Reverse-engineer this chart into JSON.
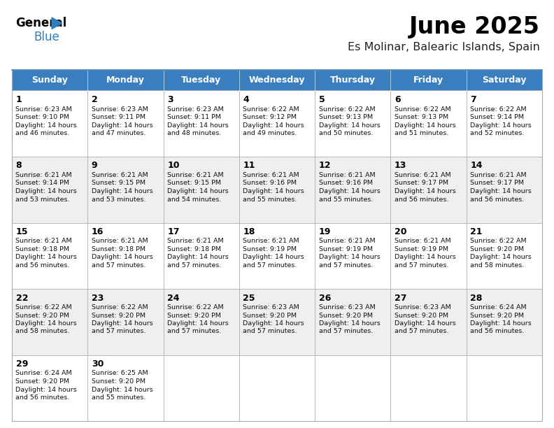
{
  "title": "June 2025",
  "subtitle": "Es Molinar, Balearic Islands, Spain",
  "header_color": "#3A7EBF",
  "header_text_color": "#FFFFFF",
  "border_color": "#AAAAAA",
  "day_headers": [
    "Sunday",
    "Monday",
    "Tuesday",
    "Wednesday",
    "Thursday",
    "Friday",
    "Saturday"
  ],
  "days": [
    {
      "day": 1,
      "row": 0,
      "col": 0,
      "sunrise": "6:23 AM",
      "sunset": "9:10 PM",
      "daylight": "14 hours",
      "daylight2": "and 46 minutes."
    },
    {
      "day": 2,
      "row": 0,
      "col": 1,
      "sunrise": "6:23 AM",
      "sunset": "9:11 PM",
      "daylight": "14 hours",
      "daylight2": "and 47 minutes."
    },
    {
      "day": 3,
      "row": 0,
      "col": 2,
      "sunrise": "6:23 AM",
      "sunset": "9:11 PM",
      "daylight": "14 hours",
      "daylight2": "and 48 minutes."
    },
    {
      "day": 4,
      "row": 0,
      "col": 3,
      "sunrise": "6:22 AM",
      "sunset": "9:12 PM",
      "daylight": "14 hours",
      "daylight2": "and 49 minutes."
    },
    {
      "day": 5,
      "row": 0,
      "col": 4,
      "sunrise": "6:22 AM",
      "sunset": "9:13 PM",
      "daylight": "14 hours",
      "daylight2": "and 50 minutes."
    },
    {
      "day": 6,
      "row": 0,
      "col": 5,
      "sunrise": "6:22 AM",
      "sunset": "9:13 PM",
      "daylight": "14 hours",
      "daylight2": "and 51 minutes."
    },
    {
      "day": 7,
      "row": 0,
      "col": 6,
      "sunrise": "6:22 AM",
      "sunset": "9:14 PM",
      "daylight": "14 hours",
      "daylight2": "and 52 minutes."
    },
    {
      "day": 8,
      "row": 1,
      "col": 0,
      "sunrise": "6:21 AM",
      "sunset": "9:14 PM",
      "daylight": "14 hours",
      "daylight2": "and 53 minutes."
    },
    {
      "day": 9,
      "row": 1,
      "col": 1,
      "sunrise": "6:21 AM",
      "sunset": "9:15 PM",
      "daylight": "14 hours",
      "daylight2": "and 53 minutes."
    },
    {
      "day": 10,
      "row": 1,
      "col": 2,
      "sunrise": "6:21 AM",
      "sunset": "9:15 PM",
      "daylight": "14 hours",
      "daylight2": "and 54 minutes."
    },
    {
      "day": 11,
      "row": 1,
      "col": 3,
      "sunrise": "6:21 AM",
      "sunset": "9:16 PM",
      "daylight": "14 hours",
      "daylight2": "and 55 minutes."
    },
    {
      "day": 12,
      "row": 1,
      "col": 4,
      "sunrise": "6:21 AM",
      "sunset": "9:16 PM",
      "daylight": "14 hours",
      "daylight2": "and 55 minutes."
    },
    {
      "day": 13,
      "row": 1,
      "col": 5,
      "sunrise": "6:21 AM",
      "sunset": "9:17 PM",
      "daylight": "14 hours",
      "daylight2": "and 56 minutes."
    },
    {
      "day": 14,
      "row": 1,
      "col": 6,
      "sunrise": "6:21 AM",
      "sunset": "9:17 PM",
      "daylight": "14 hours",
      "daylight2": "and 56 minutes."
    },
    {
      "day": 15,
      "row": 2,
      "col": 0,
      "sunrise": "6:21 AM",
      "sunset": "9:18 PM",
      "daylight": "14 hours",
      "daylight2": "and 56 minutes."
    },
    {
      "day": 16,
      "row": 2,
      "col": 1,
      "sunrise": "6:21 AM",
      "sunset": "9:18 PM",
      "daylight": "14 hours",
      "daylight2": "and 57 minutes."
    },
    {
      "day": 17,
      "row": 2,
      "col": 2,
      "sunrise": "6:21 AM",
      "sunset": "9:18 PM",
      "daylight": "14 hours",
      "daylight2": "and 57 minutes."
    },
    {
      "day": 18,
      "row": 2,
      "col": 3,
      "sunrise": "6:21 AM",
      "sunset": "9:19 PM",
      "daylight": "14 hours",
      "daylight2": "and 57 minutes."
    },
    {
      "day": 19,
      "row": 2,
      "col": 4,
      "sunrise": "6:21 AM",
      "sunset": "9:19 PM",
      "daylight": "14 hours",
      "daylight2": "and 57 minutes."
    },
    {
      "day": 20,
      "row": 2,
      "col": 5,
      "sunrise": "6:21 AM",
      "sunset": "9:19 PM",
      "daylight": "14 hours",
      "daylight2": "and 57 minutes."
    },
    {
      "day": 21,
      "row": 2,
      "col": 6,
      "sunrise": "6:22 AM",
      "sunset": "9:20 PM",
      "daylight": "14 hours",
      "daylight2": "and 58 minutes."
    },
    {
      "day": 22,
      "row": 3,
      "col": 0,
      "sunrise": "6:22 AM",
      "sunset": "9:20 PM",
      "daylight": "14 hours",
      "daylight2": "and 58 minutes."
    },
    {
      "day": 23,
      "row": 3,
      "col": 1,
      "sunrise": "6:22 AM",
      "sunset": "9:20 PM",
      "daylight": "14 hours",
      "daylight2": "and 57 minutes."
    },
    {
      "day": 24,
      "row": 3,
      "col": 2,
      "sunrise": "6:22 AM",
      "sunset": "9:20 PM",
      "daylight": "14 hours",
      "daylight2": "and 57 minutes."
    },
    {
      "day": 25,
      "row": 3,
      "col": 3,
      "sunrise": "6:23 AM",
      "sunset": "9:20 PM",
      "daylight": "14 hours",
      "daylight2": "and 57 minutes."
    },
    {
      "day": 26,
      "row": 3,
      "col": 4,
      "sunrise": "6:23 AM",
      "sunset": "9:20 PM",
      "daylight": "14 hours",
      "daylight2": "and 57 minutes."
    },
    {
      "day": 27,
      "row": 3,
      "col": 5,
      "sunrise": "6:23 AM",
      "sunset": "9:20 PM",
      "daylight": "14 hours",
      "daylight2": "and 57 minutes."
    },
    {
      "day": 28,
      "row": 3,
      "col": 6,
      "sunrise": "6:24 AM",
      "sunset": "9:20 PM",
      "daylight": "14 hours",
      "daylight2": "and 56 minutes."
    },
    {
      "day": 29,
      "row": 4,
      "col": 0,
      "sunrise": "6:24 AM",
      "sunset": "9:20 PM",
      "daylight": "14 hours",
      "daylight2": "and 56 minutes."
    },
    {
      "day": 30,
      "row": 4,
      "col": 1,
      "sunrise": "6:25 AM",
      "sunset": "9:20 PM",
      "daylight": "14 hours",
      "daylight2": "and 55 minutes."
    }
  ],
  "num_rows": 5,
  "num_cols": 7
}
